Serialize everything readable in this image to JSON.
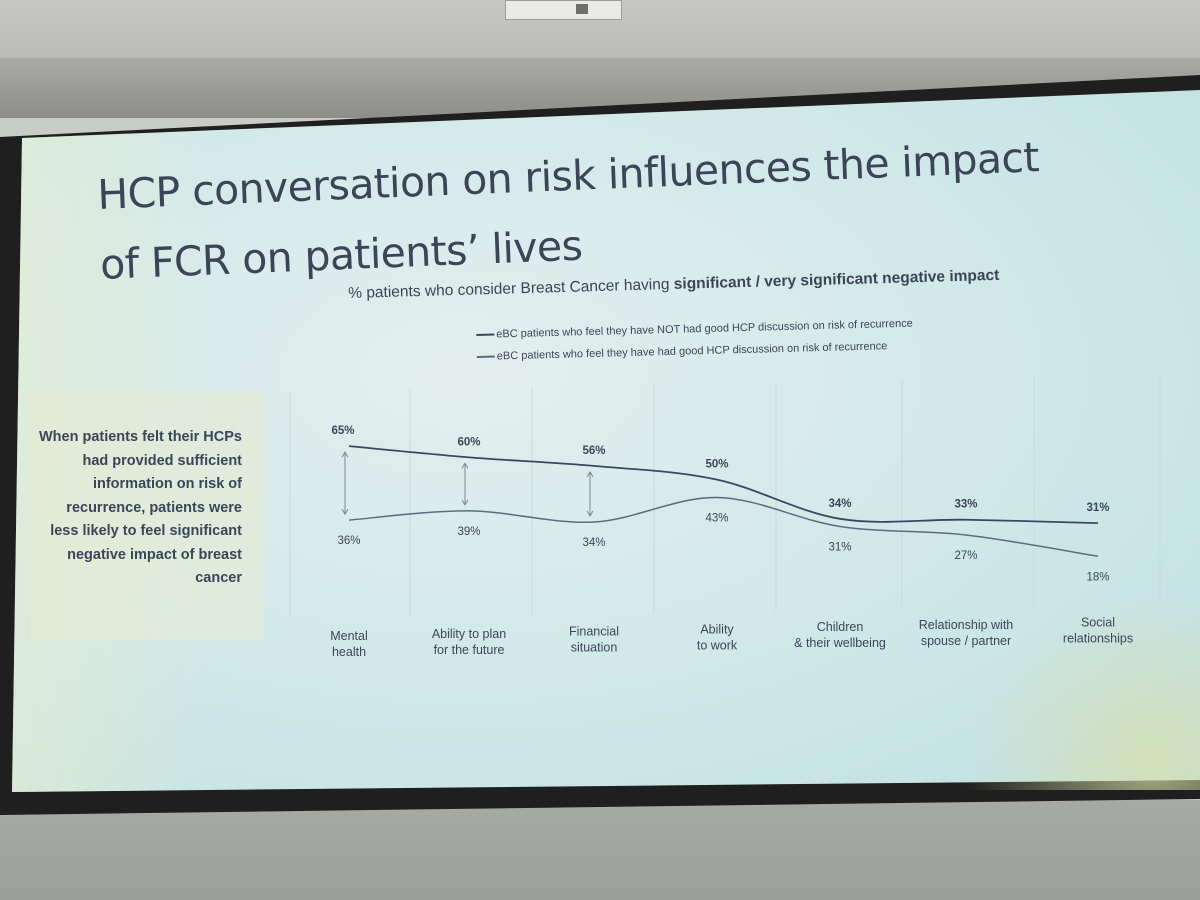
{
  "slide": {
    "title_line1": "HCP conversation on risk influences the impact",
    "title_line2": "of FCR on patients’ lives",
    "subtitle_plain": "% patients who consider Breast Cancer having ",
    "subtitle_bold": "significant / very significant negative impact",
    "side_note": "When patients felt their HCPs had provided sufficient information on risk of recurrence, patients were less likely to feel significant negative impact of breast cancer"
  },
  "colors": {
    "not_good": "#3a4763",
    "good": "#5d6b80",
    "text": "#3c4557",
    "gridline": "#c9dadb",
    "arrow": "#7c8696"
  },
  "chart_data": {
    "type": "line",
    "title": "% patients who consider Breast Cancer having significant / very significant negative impact",
    "categories": [
      [
        "Mental",
        "health"
      ],
      [
        "Ability to plan",
        "for the future"
      ],
      [
        "Financial",
        "situation"
      ],
      [
        "Ability",
        "to work"
      ],
      [
        "Children",
        "& their wellbeing"
      ],
      [
        "Relationship with",
        "spouse / partner"
      ],
      [
        "Social",
        "relationships"
      ]
    ],
    "series": [
      {
        "name": "eBC patients who feel they have NOT had good HCP discussion on risk of recurrence",
        "values": [
          65,
          60,
          56,
          50,
          34,
          33,
          31
        ],
        "labels": [
          "65%",
          "60%",
          "56%",
          "50%",
          "34%",
          "33%",
          "31%"
        ]
      },
      {
        "name": "eBC patients who feel they have had good HCP discussion on risk of recurrence",
        "values": [
          36,
          39,
          34,
          43,
          31,
          27,
          18
        ],
        "labels": [
          "36%",
          "39%",
          "34%",
          "43%",
          "31%",
          "27%",
          "18%"
        ]
      }
    ],
    "gap_arrows_at": [
      0,
      1,
      2
    ],
    "ylim": [
      0,
      80
    ],
    "legend_position": "top",
    "grid": "vertical"
  }
}
